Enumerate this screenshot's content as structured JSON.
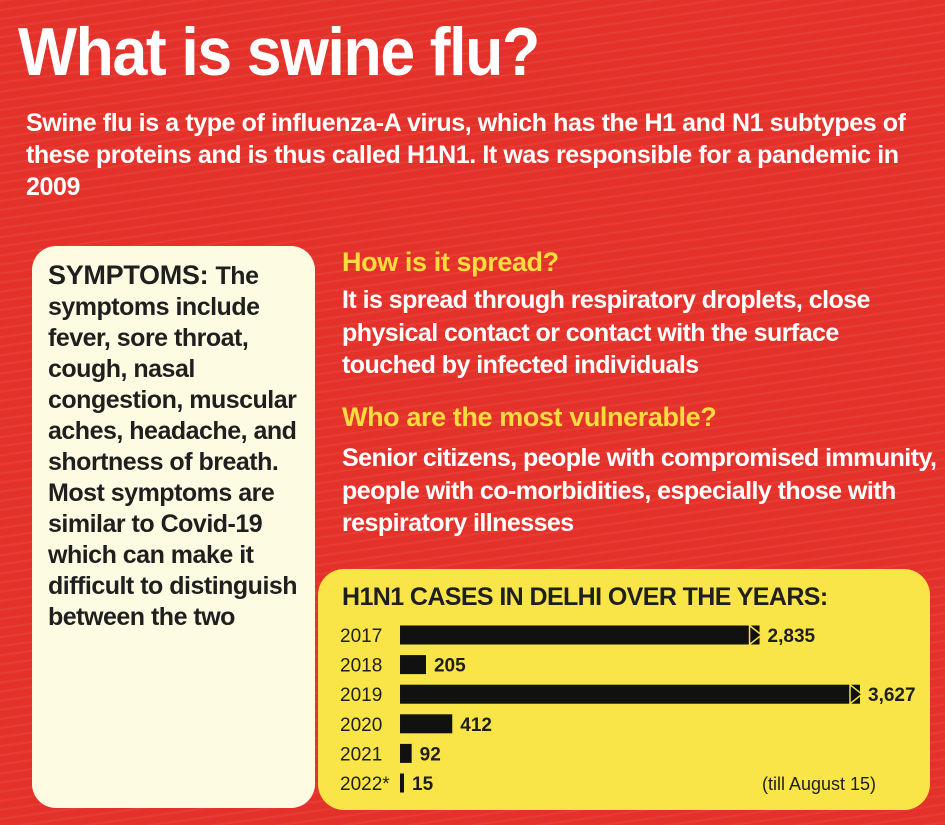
{
  "title": "What is swine flu?",
  "intro": "Swine flu is a type of influenza-A virus, which has the H1 and N1 subtypes of these proteins and is thus called H1N1. It was responsible for a pandemic in 2009",
  "symptoms": {
    "heading": "SYMPTOMS:",
    "text": "The symptoms include fever, sore throat, cough, nasal congestion, muscular aches, headache, and shortness of breath. Most symptoms are similar to Covid-19 which can make it difficult to distinguish between the two"
  },
  "spread": {
    "question": "How is it spread?",
    "answer": "It is spread through respiratory droplets, close physical contact or contact with the surface touched by infected individuals"
  },
  "vulnerable": {
    "question": "Who are the most vulnerable?",
    "answer": "Senior citizens, people with compromised immunity, people with co-morbidities, especially those with respiratory illnesses"
  },
  "colors": {
    "background": "#e4322b",
    "question_yellow": "#f9dd3f",
    "card_cream": "#fdfbe1",
    "chart_panel": "#f9e547",
    "bar": "#111111"
  },
  "chart_data": {
    "type": "bar",
    "orientation": "horizontal",
    "title": "H1N1 CASES IN DELHI OVER THE YEARS:",
    "categories": [
      "2017",
      "2018",
      "2019",
      "2020",
      "2021",
      "2022*"
    ],
    "values": [
      2835,
      205,
      3627,
      412,
      92,
      15
    ],
    "value_labels": [
      "2,835",
      "205",
      "3,627",
      "412",
      "92",
      "15"
    ],
    "note": "(till August 15)",
    "xlim": [
      0,
      3627
    ],
    "grid": false
  }
}
